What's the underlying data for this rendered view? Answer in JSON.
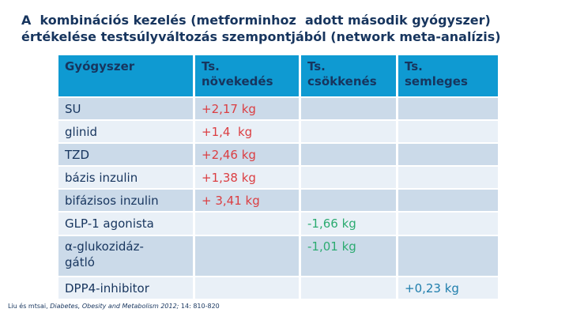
{
  "title": "A  kombinációs kezelés (metforminhoz  adott második gyógyszer)\nértékelése testsúlyváltozás szempontjából (network meta-analízis)",
  "colors": {
    "header_bg": "#0F9AD2",
    "row_dark": "#CBDAE9",
    "row_light": "#E9F0F7",
    "title_text": "#17355E",
    "increase_value": "#DB3E42",
    "decrease_value": "#2CAB71",
    "neutral_value": "#1F7EAC"
  },
  "table": {
    "headers": [
      "Gyógyszer",
      "Ts.\nnövekedés",
      "Ts.\ncsökkenés",
      "Ts.\nsemleges"
    ],
    "rows": [
      {
        "label": "SU",
        "increase": "+2,17 kg",
        "decrease": "",
        "neutral": ""
      },
      {
        "label": "glinid",
        "increase": "+1,4  kg",
        "decrease": "",
        "neutral": ""
      },
      {
        "label": "TZD",
        "increase": "+2,46 kg",
        "decrease": "",
        "neutral": ""
      },
      {
        "label": "bázis inzulin",
        "increase": "+1,38 kg",
        "decrease": "",
        "neutral": ""
      },
      {
        "label": "bifázisos inzulin",
        "increase": "+ 3,41 kg",
        "decrease": "",
        "neutral": ""
      },
      {
        "label": "GLP-1 agonista",
        "increase": "",
        "decrease": "-1,66 kg",
        "neutral": ""
      },
      {
        "label": "α-glukozidáz-\ngátló",
        "increase": "",
        "decrease": "-1,01 kg",
        "neutral": ""
      },
      {
        "label": "DPP4-inhibitor",
        "increase": "",
        "decrease": "",
        "neutral": "+0,23 kg"
      }
    ]
  },
  "footer": {
    "authors": "Liu és mtsai, ",
    "journal": "Diabetes, Obesity and Metabolism 2012;",
    "pages": " 14: 810-820"
  }
}
